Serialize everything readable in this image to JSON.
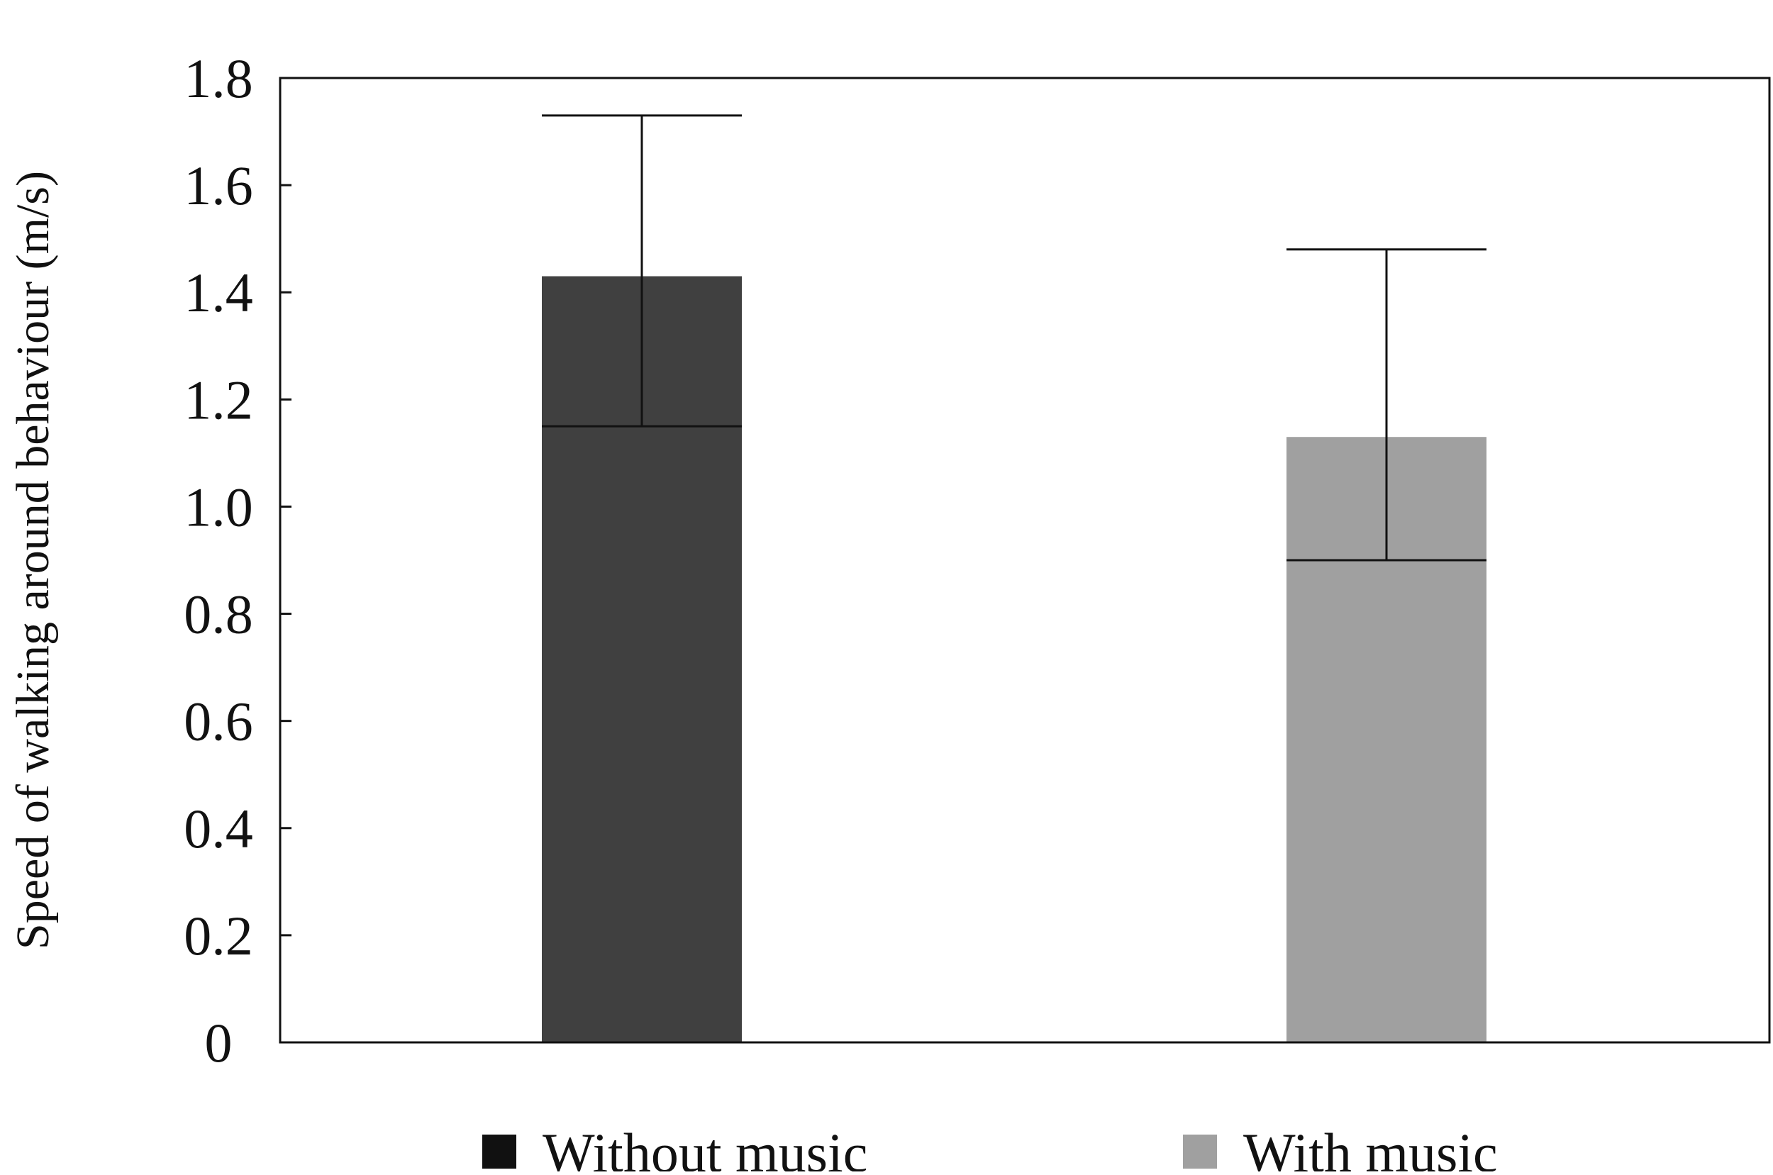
{
  "chart_data": {
    "type": "bar",
    "title": "",
    "xlabel": "",
    "ylabel": "Speed of walking around behaviour (m/s)",
    "ylim": [
      0,
      1.8
    ],
    "yticks": [
      0,
      0.2,
      0.4,
      0.6,
      0.8,
      1.0,
      1.2,
      1.4,
      1.6,
      1.8
    ],
    "ytick_labels": [
      "0",
      "0.2",
      "0.4",
      "0.6",
      "0.8",
      "1.0",
      "1.2",
      "1.4",
      "1.6",
      "1.8"
    ],
    "grid": false,
    "legend_position": "bottom",
    "series": [
      {
        "name": "Without music",
        "value": 1.43,
        "error_low": 1.15,
        "error_high": 1.73,
        "color": "#404040"
      },
      {
        "name": "With music",
        "value": 1.13,
        "error_low": 0.9,
        "error_high": 1.48,
        "color": "#a0a0a0"
      }
    ],
    "legend_swatch_colors": [
      "#111111",
      "#a0a0a0"
    ]
  }
}
